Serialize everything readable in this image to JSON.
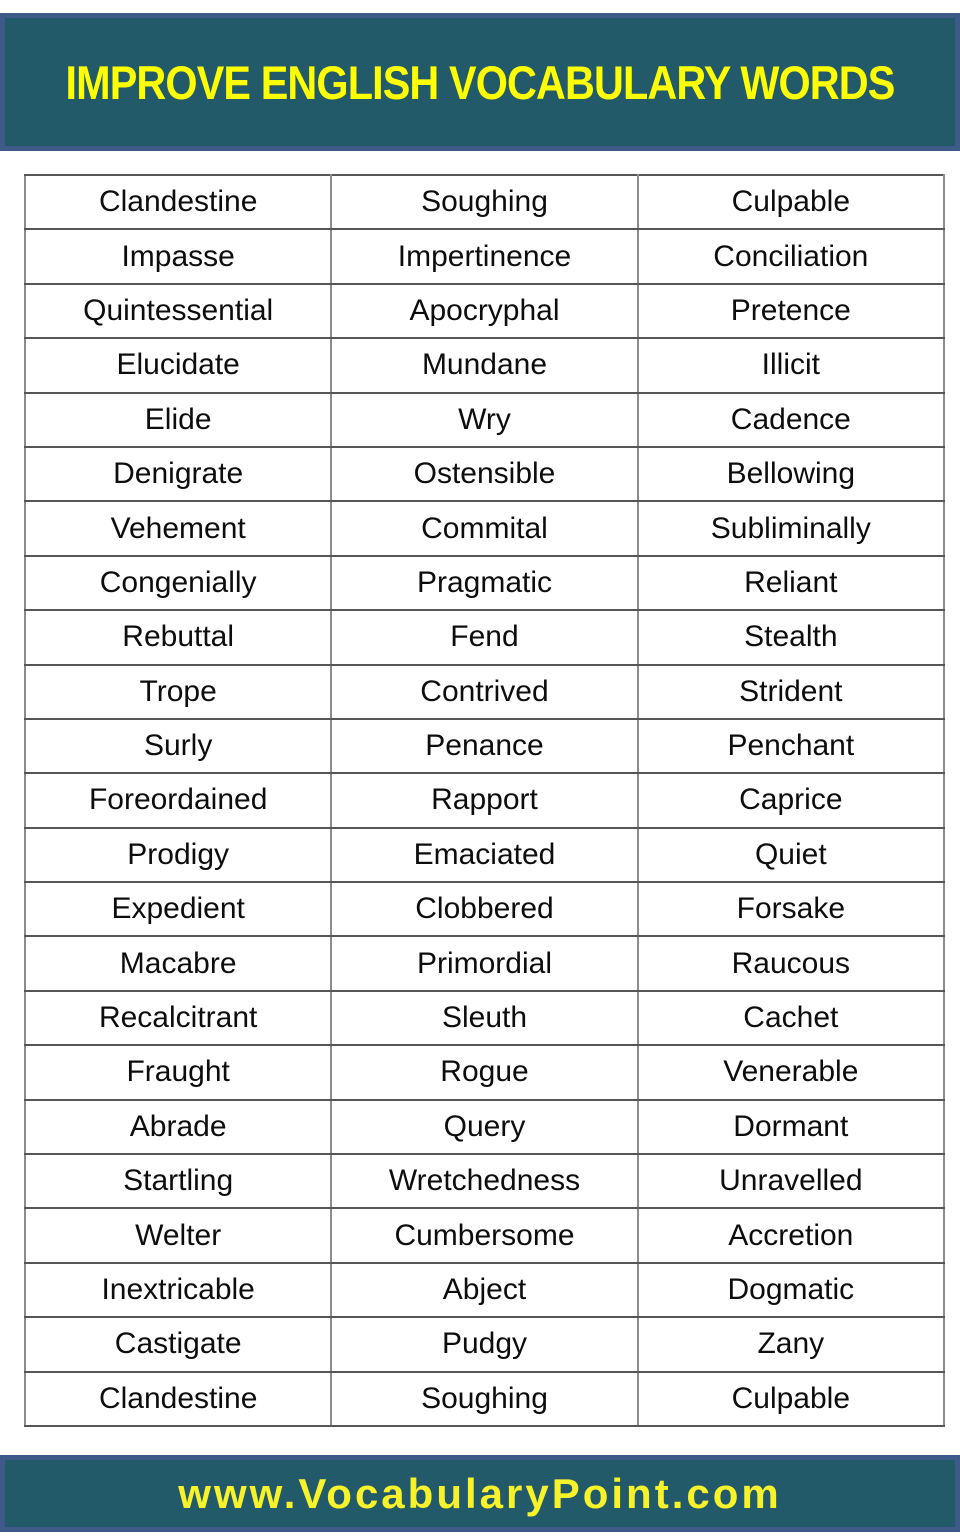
{
  "page": {
    "title": "IMPROVE ENGLISH VOCABULARY WORDS"
  },
  "footer": {
    "url": "www.VocabularyPoint.com"
  },
  "colors": {
    "banner_teal": "#235a69",
    "banner_border_blue": "#3d5a88",
    "title_yellow": "#ffff00",
    "footer_yellow": "#f8f22b",
    "table_border_gray": "#8c8c8c",
    "text_black": "#0d0d0d",
    "page_background": "#ffffff"
  },
  "table": {
    "columns": 3,
    "rows": [
      [
        "Clandestine",
        "Soughing",
        "Culpable"
      ],
      [
        "Impasse",
        "Impertinence",
        "Conciliation"
      ],
      [
        "Quintessential",
        "Apocryphal",
        "Pretence"
      ],
      [
        "Elucidate",
        "Mundane",
        "Illicit"
      ],
      [
        "Elide",
        "Wry",
        "Cadence"
      ],
      [
        "Denigrate",
        "Ostensible",
        "Bellowing"
      ],
      [
        "Vehement",
        "Commital",
        "Subliminally"
      ],
      [
        "Congenially",
        "Pragmatic",
        "Reliant"
      ],
      [
        "Rebuttal",
        "Fend",
        "Stealth"
      ],
      [
        "Trope",
        "Contrived",
        "Strident"
      ],
      [
        "Surly",
        "Penance",
        "Penchant"
      ],
      [
        "Foreordained",
        "Rapport",
        "Caprice"
      ],
      [
        "Prodigy",
        "Emaciated",
        "Quiet"
      ],
      [
        "Expedient",
        "Clobbered",
        "Forsake"
      ],
      [
        "Macabre",
        "Primordial",
        "Raucous"
      ],
      [
        "Recalcitrant",
        "Sleuth",
        "Cachet"
      ],
      [
        "Fraught",
        "Rogue",
        "Venerable"
      ],
      [
        "Abrade",
        "Query",
        "Dormant"
      ],
      [
        "Startling",
        "Wretchedness",
        "Unravelled"
      ],
      [
        "Welter",
        "Cumbersome",
        "Accretion"
      ],
      [
        "Inextricable",
        "Abject",
        "Dogmatic"
      ],
      [
        "Castigate",
        "Pudgy",
        "Zany"
      ],
      [
        "Clandestine",
        "Soughing",
        "Culpable"
      ]
    ]
  }
}
